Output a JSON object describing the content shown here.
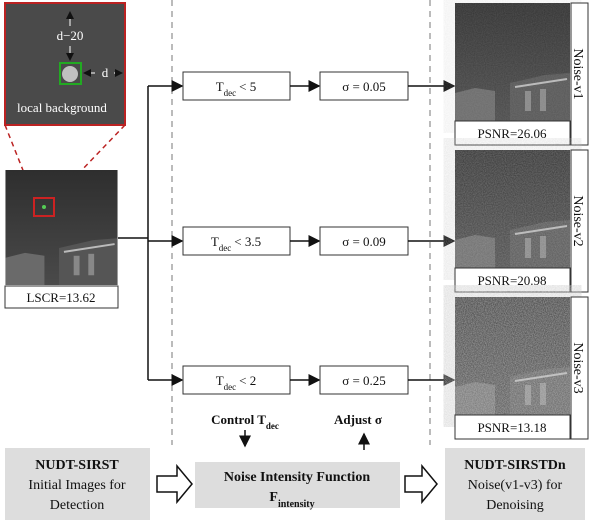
{
  "zoom": {
    "distance_label": "d−20",
    "size_label": "d",
    "caption": "local background"
  },
  "input_metric": "LSCR=13.62",
  "rows": [
    {
      "threshold_symbol": "T",
      "threshold_sub": "dec",
      "threshold": "< 5",
      "sigma": "σ = 0.05",
      "psnr": "PSNR=26.06",
      "noise": "Noise-v1"
    },
    {
      "threshold_symbol": "T",
      "threshold_sub": "dec",
      "threshold": "< 3.5",
      "sigma": "σ = 0.09",
      "psnr": "PSNR=20.98",
      "noise": "Noise-v2"
    },
    {
      "threshold_symbol": "T",
      "threshold_sub": "dec",
      "threshold": "< 2",
      "sigma": "σ = 0.25",
      "psnr": "PSNR=13.18",
      "noise": "Noise-v3"
    }
  ],
  "control": {
    "symbol": "Control T",
    "sub": "dec"
  },
  "adjust": "Adjust σ",
  "source": {
    "title": "NUDT-SIRST",
    "line1": "Initial Images for",
    "line2": "Detection"
  },
  "function": {
    "title": "Noise Intensity Function",
    "symbol": "F",
    "sub": "intensity"
  },
  "target": {
    "title": "NUDT-SIRSTDn",
    "line1": "Noise(v1-v3) for",
    "line2": "Denoising"
  }
}
